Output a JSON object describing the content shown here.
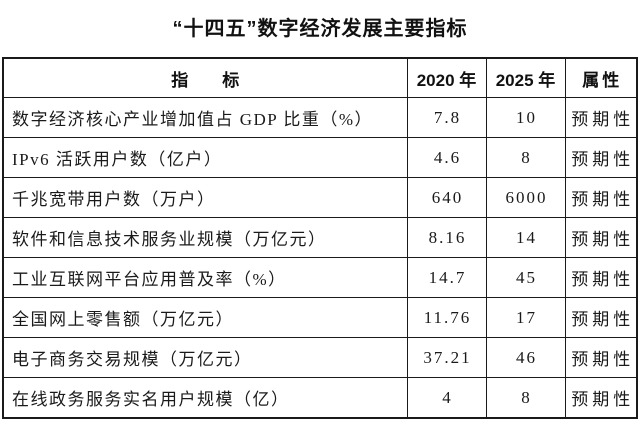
{
  "page": {
    "title": "“十四五”数字经济发展主要指标"
  },
  "table": {
    "headers": {
      "indicator": "指　　标",
      "y2020": "2020 年",
      "y2025": "2025 年",
      "attribute": "属性"
    },
    "rows": [
      {
        "indicator": "数字经济核心产业增加值占 GDP 比重（%）",
        "y2020": "7.8",
        "y2025": "10",
        "attribute": "预期性"
      },
      {
        "indicator": "IPv6 活跃用户数（亿户）",
        "y2020": "4.6",
        "y2025": "8",
        "attribute": "预期性"
      },
      {
        "indicator": "千兆宽带用户数（万户）",
        "y2020": "640",
        "y2025": "6000",
        "attribute": "预期性"
      },
      {
        "indicator": "软件和信息技术服务业规模（万亿元）",
        "y2020": "8.16",
        "y2025": "14",
        "attribute": "预期性"
      },
      {
        "indicator": "工业互联网平台应用普及率（%）",
        "y2020": "14.7",
        "y2025": "45",
        "attribute": "预期性"
      },
      {
        "indicator": "全国网上零售额（万亿元）",
        "y2020": "11.76",
        "y2025": "17",
        "attribute": "预期性"
      },
      {
        "indicator": "电子商务交易规模（万亿元）",
        "y2020": "37.21",
        "y2025": "46",
        "attribute": "预期性"
      },
      {
        "indicator": "在线政务服务实名用户规模（亿）",
        "y2020": "4",
        "y2025": "8",
        "attribute": "预期性"
      }
    ],
    "colors": {
      "text": "#1a1a1a",
      "border": "#1a1a1a",
      "background": "#ffffff"
    }
  }
}
